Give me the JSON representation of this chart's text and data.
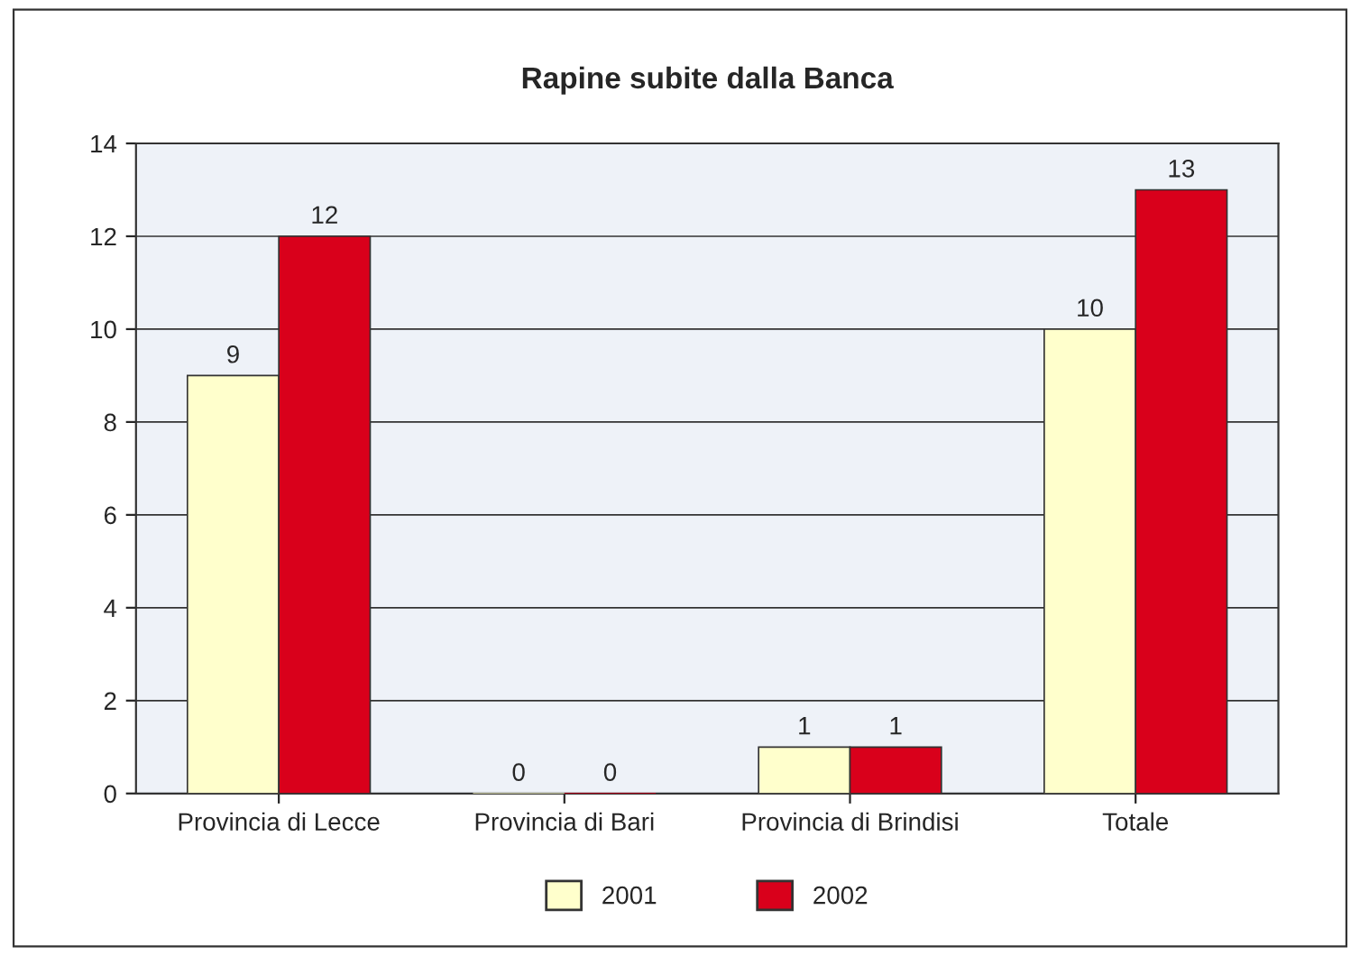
{
  "chart_data": {
    "type": "bar",
    "title": "Rapine subite dalla Banca",
    "categories": [
      "Provincia di Lecce",
      "Provincia di Bari",
      "Provincia di Brindisi",
      "Totale"
    ],
    "series": [
      {
        "name": "2001",
        "color": "#ffffcc",
        "values": [
          9,
          0,
          1,
          10
        ]
      },
      {
        "name": "2002",
        "color": "#d9001b",
        "values": [
          12,
          0,
          1,
          13
        ]
      }
    ],
    "ylim": [
      0,
      14
    ],
    "yticks": [
      0,
      2,
      4,
      6,
      8,
      10,
      12,
      14
    ],
    "grid": "y",
    "legend": "bottom",
    "data_labels": true
  }
}
